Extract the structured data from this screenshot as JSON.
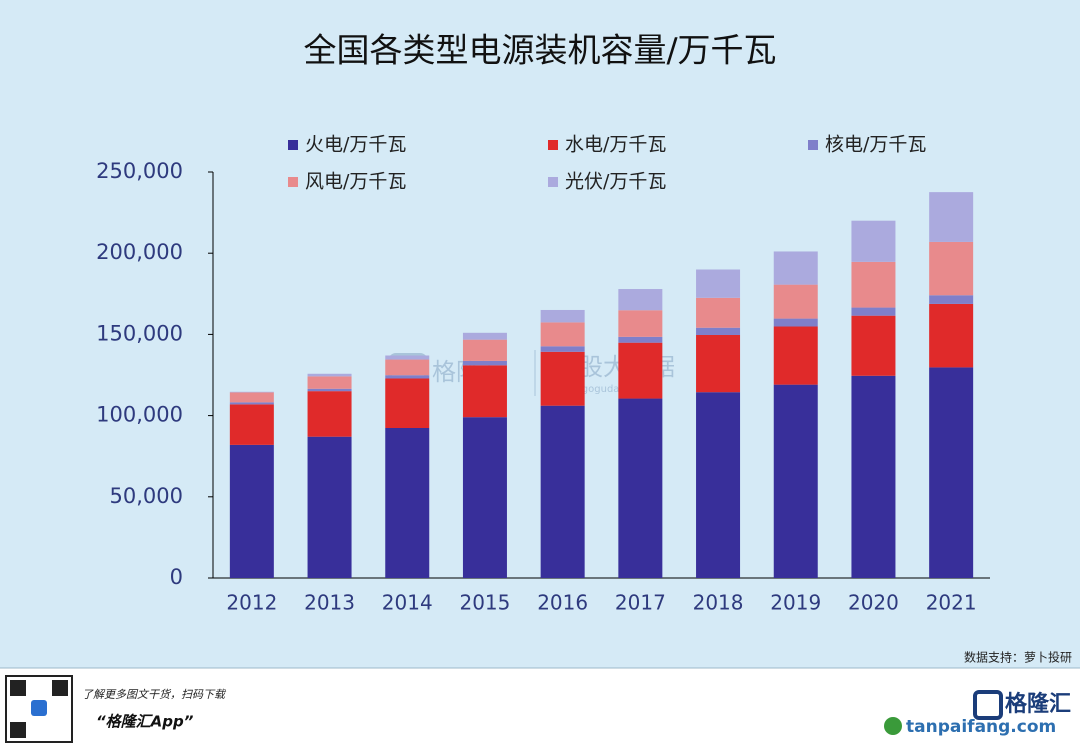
{
  "chart_data": {
    "type": "stacked_bar",
    "title": "全国各类型电源装机容量/万千瓦",
    "categories": [
      "2012",
      "2013",
      "2014",
      "2015",
      "2016",
      "2017",
      "2018",
      "2019",
      "2020",
      "2021"
    ],
    "series": [
      {
        "name": "火电/万千瓦",
        "color": "#382f9a",
        "values": [
          81968,
          87009,
          92363,
          99021,
          106094,
          110495,
          114408,
          119055,
          124517,
          129678
        ]
      },
      {
        "name": "水电/万千瓦",
        "color": "#e02a2a",
        "values": [
          24947,
          28044,
          30486,
          31954,
          33207,
          34411,
          35226,
          35804,
          37016,
          39092
        ]
      },
      {
        "name": "核电/万千瓦",
        "color": "#7f7fca",
        "values": [
          1257,
          1466,
          2008,
          2717,
          3364,
          3582,
          4466,
          4874,
          4989,
          5326
        ]
      },
      {
        "name": "风电/万千瓦",
        "color": "#e88a8c",
        "values": [
          6142,
          7652,
          9657,
          13075,
          14747,
          16400,
          18427,
          20915,
          28153,
          32848
        ]
      },
      {
        "name": "光伏/万千瓦",
        "color": "#abaade",
        "values": [
          341,
          1589,
          2486,
          4218,
          7631,
          13042,
          17433,
          20418,
          25343,
          30656
        ]
      }
    ],
    "ylim": [
      0,
      250000
    ],
    "yticks": [
      0,
      {
        "value": 50000,
        "label": "50,000"
      },
      {
        "value": 100000,
        "label": "100,000"
      },
      {
        "value": 150000,
        "label": "150,000"
      },
      {
        "value": 200000,
        "label": "200,000"
      },
      {
        "value": 250000,
        "label": "250,000"
      }
    ],
    "legend": "top"
  },
  "watermark": {
    "brand": "格隆汇",
    "product": "全股大数据",
    "url": "www.gogudata.com"
  },
  "footer": {
    "source": "数据支持：萝卜投研",
    "promo": "了解更多图文干货，扫码下载",
    "app": "“格隆汇App”",
    "logo": "格隆汇",
    "site": "tanpaifang.com"
  }
}
